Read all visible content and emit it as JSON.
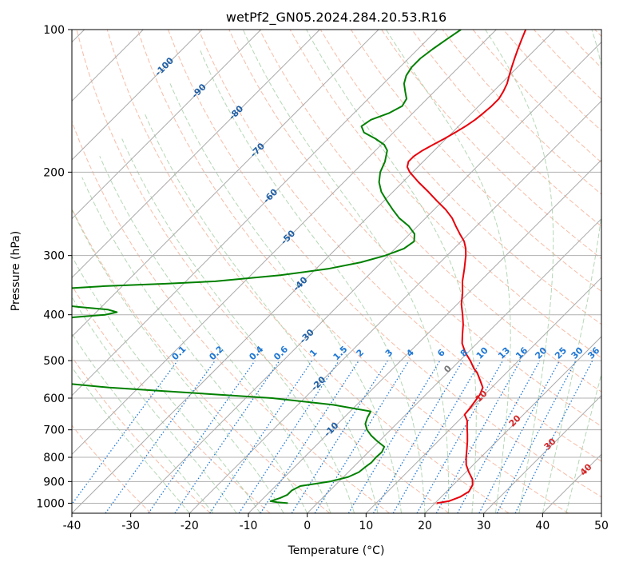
{
  "chart_data": {
    "type": "line",
    "title": "wetPf2_GN05.2024.284.20.53.R16",
    "xlabel": "Temperature (°C)",
    "ylabel": "Pressure (hPa)",
    "xlim": [
      -40,
      50
    ],
    "ylim": [
      1050,
      100
    ],
    "y_scale": "log",
    "x_ticks": [
      -40,
      -30,
      -20,
      -10,
      0,
      10,
      20,
      30,
      40,
      50
    ],
    "y_ticks": [
      100,
      200,
      300,
      400,
      500,
      600,
      700,
      800,
      900,
      1000
    ],
    "grid": true,
    "skew_degrees": 45,
    "isotherm_labels": [
      "-100",
      "-90",
      "-80",
      "-70",
      "-60",
      "-50",
      "-40",
      "-30",
      "-20",
      "-10",
      "0",
      "10",
      "20",
      "30",
      "40"
    ],
    "mixing_ratio_labels": [
      "0.1",
      "0.2",
      "0.4",
      "0.6",
      "1",
      "1.5",
      "2",
      "3",
      "4",
      "6",
      "8",
      "10",
      "13",
      "16",
      "20",
      "25",
      "30",
      "36"
    ],
    "mixing_ratio_values": [
      0.1,
      0.2,
      0.4,
      0.6,
      1,
      1.5,
      2,
      3,
      4,
      6,
      8,
      10,
      13,
      16,
      20,
      25,
      30,
      36
    ],
    "colors": {
      "temperature": "#e8000b",
      "dewpoint": "#008000",
      "isotherm": "#aaaaaa",
      "dry_adiabat": "#f4a58a",
      "moist_adiabat": "#9cc99c",
      "mixing_ratio": "#1f77d4",
      "label_blue": "#1f5fa6",
      "label_red": "#d62728",
      "label_gray": "#777777"
    },
    "series": [
      {
        "name": "Temperature",
        "points": [
          [
            1000,
            20.3
          ],
          [
            990,
            22.0
          ],
          [
            970,
            23.2
          ],
          [
            945,
            23.8
          ],
          [
            915,
            23.3
          ],
          [
            890,
            22.3
          ],
          [
            860,
            20.5
          ],
          [
            830,
            18.8
          ],
          [
            800,
            17.5
          ],
          [
            770,
            16.3
          ],
          [
            740,
            15.0
          ],
          [
            715,
            13.8
          ],
          [
            690,
            12.5
          ],
          [
            670,
            11.5
          ],
          [
            650,
            10.0
          ],
          [
            630,
            9.8
          ],
          [
            610,
            9.5
          ],
          [
            590,
            9.2
          ],
          [
            570,
            8.5
          ],
          [
            550,
            6.8
          ],
          [
            530,
            5.0
          ],
          [
            520,
            3.8
          ],
          [
            500,
            1.8
          ],
          [
            480,
            -0.5
          ],
          [
            460,
            -2.5
          ],
          [
            440,
            -4.0
          ],
          [
            420,
            -5.5
          ],
          [
            400,
            -7.3
          ],
          [
            380,
            -9.3
          ],
          [
            360,
            -11.0
          ],
          [
            340,
            -13.0
          ],
          [
            320,
            -14.8
          ],
          [
            300,
            -16.8
          ],
          [
            290,
            -18.0
          ],
          [
            280,
            -19.5
          ],
          [
            270,
            -21.5
          ],
          [
            260,
            -23.5
          ],
          [
            250,
            -25.5
          ],
          [
            240,
            -28.0
          ],
          [
            230,
            -31.0
          ],
          [
            220,
            -34.0
          ],
          [
            210,
            -37.3
          ],
          [
            200,
            -40.5
          ],
          [
            195,
            -41.8
          ],
          [
            190,
            -42.5
          ],
          [
            185,
            -42.5
          ],
          [
            180,
            -42.0
          ],
          [
            175,
            -41.2
          ],
          [
            170,
            -40.3
          ],
          [
            165,
            -39.5
          ],
          [
            160,
            -38.8
          ],
          [
            155,
            -38.3
          ],
          [
            150,
            -38.0
          ],
          [
            145,
            -37.8
          ],
          [
            140,
            -37.8
          ],
          [
            135,
            -38.3
          ],
          [
            130,
            -39.0
          ],
          [
            125,
            -40.0
          ],
          [
            120,
            -41.0
          ],
          [
            115,
            -42.0
          ],
          [
            110,
            -43.0
          ],
          [
            105,
            -44.0
          ],
          [
            100,
            -45.0
          ]
        ]
      },
      {
        "name": "Dewpoint",
        "points": [
          [
            1000,
            -5.0
          ],
          [
            995,
            -7.0
          ],
          [
            990,
            -8.3
          ],
          [
            975,
            -7.2
          ],
          [
            960,
            -6.5
          ],
          [
            940,
            -6.5
          ],
          [
            920,
            -5.8
          ],
          [
            900,
            -1.5
          ],
          [
            880,
            0.8
          ],
          [
            860,
            1.8
          ],
          [
            840,
            2.0
          ],
          [
            820,
            2.3
          ],
          [
            800,
            2.2
          ],
          [
            780,
            2.3
          ],
          [
            760,
            1.8
          ],
          [
            740,
            -0.3
          ],
          [
            720,
            -2.3
          ],
          [
            700,
            -4.0
          ],
          [
            680,
            -5.3
          ],
          [
            660,
            -6.0
          ],
          [
            640,
            -6.5
          ],
          [
            620,
            -14.0
          ],
          [
            600,
            -25.5
          ],
          [
            590,
            -35.0
          ],
          [
            580,
            -45.0
          ],
          [
            570,
            -55.0
          ],
          [
            560,
            -62.0
          ],
          [
            550,
            -68.5
          ],
          [
            540,
            -72.0
          ],
          [
            520,
            -76.0
          ],
          [
            505,
            -78.5
          ],
          [
            500,
            -75.0
          ],
          [
            492,
            -68.0
          ],
          [
            485,
            -68.8
          ],
          [
            478,
            -76.0
          ],
          [
            472,
            -81.0
          ],
          [
            460,
            -82.5
          ],
          [
            440,
            -80.5
          ],
          [
            420,
            -78.0
          ],
          [
            405,
            -73.0
          ],
          [
            400,
            -68.0
          ],
          [
            395,
            -66.5
          ],
          [
            390,
            -68.5
          ],
          [
            385,
            -74.0
          ],
          [
            380,
            -78.5
          ],
          [
            375,
            -81.5
          ],
          [
            370,
            -82.5
          ],
          [
            360,
            -81.5
          ],
          [
            352,
            -79.0
          ],
          [
            348,
            -73.0
          ],
          [
            344,
            -63.0
          ],
          [
            340,
            -55.0
          ],
          [
            330,
            -45.0
          ],
          [
            320,
            -38.0
          ],
          [
            310,
            -33.5
          ],
          [
            300,
            -30.5
          ],
          [
            290,
            -28.5
          ],
          [
            280,
            -28.0
          ],
          [
            270,
            -29.2
          ],
          [
            260,
            -31.5
          ],
          [
            250,
            -34.5
          ],
          [
            240,
            -37.0
          ],
          [
            230,
            -39.5
          ],
          [
            220,
            -42.0
          ],
          [
            210,
            -44.0
          ],
          [
            200,
            -45.5
          ],
          [
            190,
            -46.5
          ],
          [
            180,
            -48.0
          ],
          [
            175,
            -49.5
          ],
          [
            170,
            -52.0
          ],
          [
            165,
            -55.0
          ],
          [
            160,
            -56.5
          ],
          [
            155,
            -56.0
          ],
          [
            150,
            -54.0
          ],
          [
            145,
            -53.0
          ],
          [
            140,
            -53.5
          ],
          [
            135,
            -55.0
          ],
          [
            130,
            -56.5
          ],
          [
            125,
            -57.5
          ],
          [
            120,
            -58.0
          ],
          [
            115,
            -58.0
          ],
          [
            110,
            -57.5
          ],
          [
            105,
            -56.8
          ],
          [
            100,
            -56.0
          ]
        ]
      }
    ]
  }
}
